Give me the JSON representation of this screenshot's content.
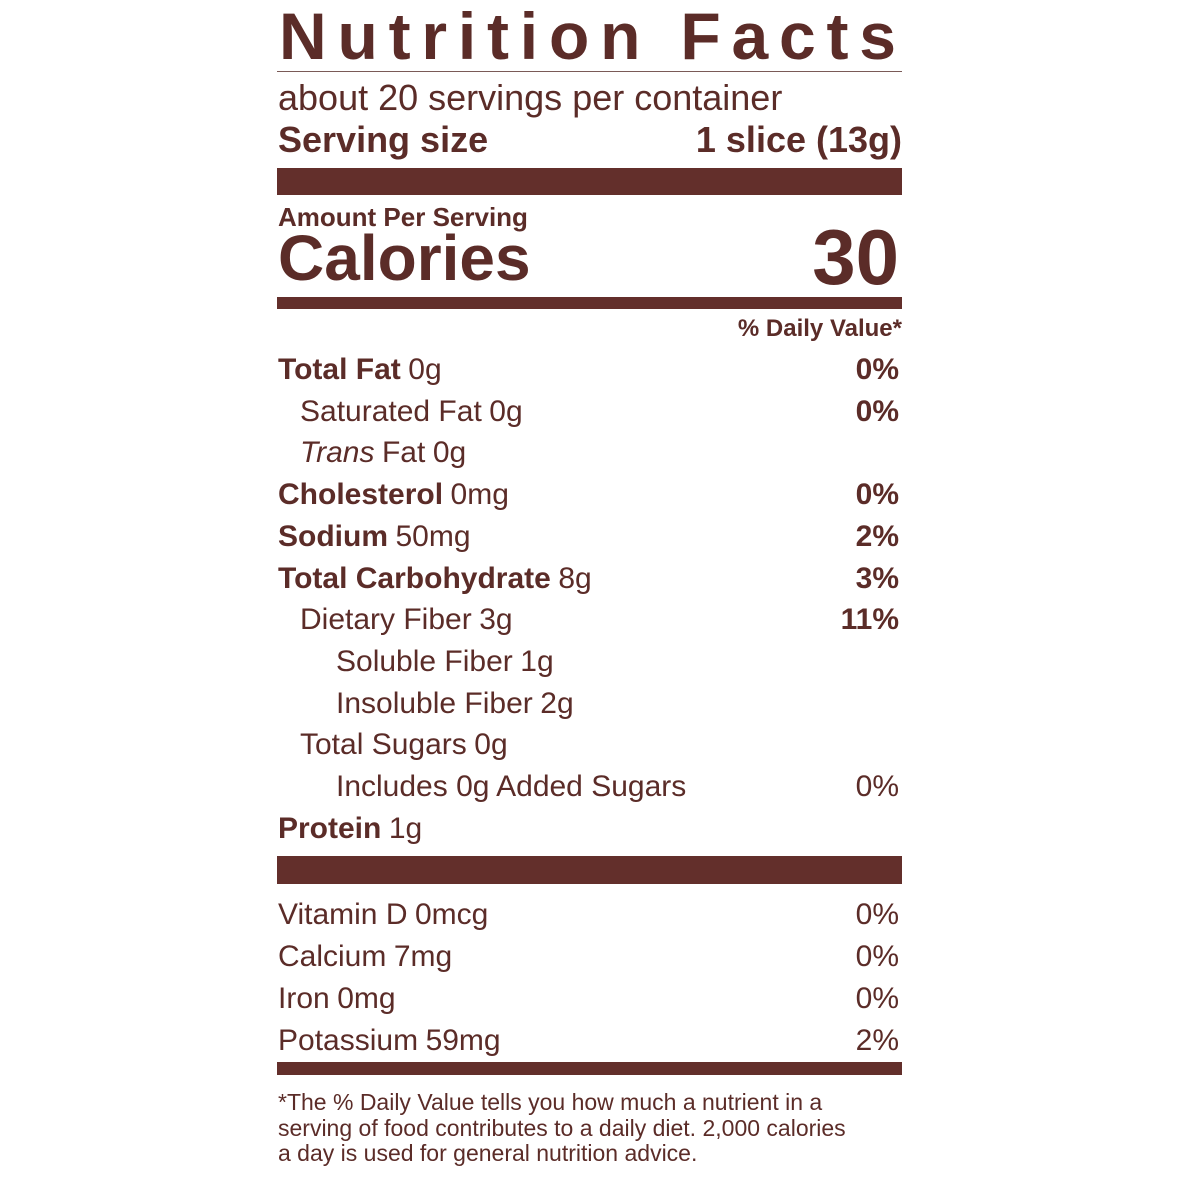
{
  "header": {
    "title": "Nutrition Facts",
    "servings": "about 20 servings per container",
    "serving_size_label": "Serving size",
    "serving_size_value": "1 slice (13g)"
  },
  "calories": {
    "amount_per_serving": "Amount Per Serving",
    "label": "Calories",
    "value": "30"
  },
  "daily_value_header": "% Daily Value*",
  "nutrients": [
    {
      "name": "Total Fat",
      "amount": "0g",
      "dv": "0%",
      "sub": [
        {
          "name": "Saturated Fat",
          "amount": "0g",
          "dv": "0%"
        },
        {
          "italic": "Trans",
          "name": "Fat",
          "amount": "0g"
        }
      ]
    },
    {
      "name": "Cholesterol",
      "amount": "0mg",
      "dv": "0%"
    },
    {
      "name": "Sodium",
      "amount": "50mg",
      "dv": "2%"
    },
    {
      "name": "Total Carbohydrate",
      "amount": "8g",
      "dv": "3%",
      "sub": [
        {
          "name": "Dietary Fiber",
          "amount": "3g",
          "dv": "11%",
          "sub": [
            {
              "name": "Soluble Fiber",
              "amount": "1g"
            },
            {
              "name": "Insoluble Fiber",
              "amount": "2g"
            }
          ]
        },
        {
          "name": "Total Sugars",
          "amount": "0g",
          "sub": [
            {
              "name": "Includes 0g Added Sugars",
              "dv": "0%"
            }
          ]
        }
      ]
    },
    {
      "name": "Protein",
      "amount": "1g"
    }
  ],
  "vitamins": [
    {
      "name": "Vitamin D",
      "amount": "0mcg",
      "dv": "0%"
    },
    {
      "name": "Calcium",
      "amount": "7mg",
      "dv": "0%"
    },
    {
      "name": "Iron",
      "amount": "0mg",
      "dv": "0%"
    },
    {
      "name": "Potassium",
      "amount": "59mg",
      "dv": "2%"
    }
  ],
  "footnote": [
    "*The % Daily Value tells you how much a nutrient in a",
    "serving of food contributes to a daily diet. 2,000 calories",
    "a day is used for general nutrition advice."
  ]
}
